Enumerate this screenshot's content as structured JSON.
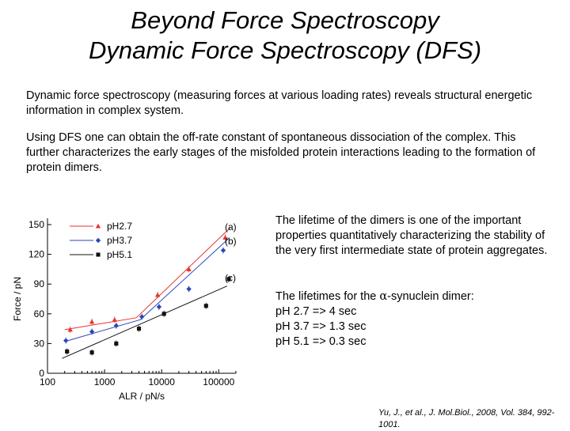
{
  "title_line1": "Beyond Force Spectroscopy",
  "title_line2": "Dynamic Force Spectroscopy (DFS)",
  "paragraph1": "Dynamic force spectroscopy (measuring forces at various loading rates) reveals structural energetic information in complex system.",
  "paragraph2": "Using DFS one can obtain the off-rate constant of spontaneous dissociation of the complex. This further characterizes the early stages of the misfolded protein interactions leading to the formation of protein dimers.",
  "side_text1": "The lifetime of the dimers is one of the important properties quantitatively characterizing the stability of the very first intermediate state of protein aggregates.",
  "lifetimes_intro_pre": "The lifetimes for the ",
  "lifetimes_intro_alpha": "α",
  "lifetimes_intro_post": "-synuclein dimer:",
  "lifetime_rows": [
    "pH 2.7 => 4 sec",
    "pH 3.7 => 1.3 sec",
    "pH 5.1 => 0.3 sec"
  ],
  "citation": "Yu, J., et al., J. Mol.Biol., 2008, Vol. 384, 992-1001.",
  "chart_data": {
    "type": "scatter",
    "xlabel": "ALR / pN/s",
    "ylabel": "Force / pN",
    "xscale": "log",
    "xlim": [
      100,
      200000
    ],
    "ylim": [
      0,
      150
    ],
    "x_ticks": [
      100,
      1000,
      10000,
      100000
    ],
    "x_tick_labels": [
      "100",
      "1000",
      "10000",
      "100000"
    ],
    "y_ticks": [
      0,
      30,
      60,
      90,
      120,
      150
    ],
    "legend_position": "top-left",
    "grid": false,
    "series": [
      {
        "name": "pH2.7",
        "tag": "(a)",
        "color": "#e8322b",
        "marker": "triangle",
        "points": [
          [
            250,
            44
          ],
          [
            600,
            52
          ],
          [
            1500,
            54
          ],
          [
            8500,
            79
          ],
          [
            30000,
            105
          ],
          [
            130000,
            137
          ]
        ],
        "fit_segments": [
          [
            [
              200,
              44
            ],
            [
              3600,
              56
            ]
          ],
          [
            [
              3600,
              56
            ],
            [
              160000,
              147
            ]
          ]
        ]
      },
      {
        "name": "pH3.7",
        "tag": "(b)",
        "color": "#2b46b8",
        "marker": "diamond",
        "points": [
          [
            210,
            33
          ],
          [
            600,
            42
          ],
          [
            1600,
            48
          ],
          [
            4500,
            57
          ],
          [
            9000,
            67
          ],
          [
            30000,
            85
          ],
          [
            120000,
            124
          ]
        ],
        "fit_segments": [
          [
            [
              200,
              32
            ],
            [
              4200,
              54
            ]
          ],
          [
            [
              4200,
              54
            ],
            [
              150000,
              136
            ]
          ]
        ]
      },
      {
        "name": "pH5.1",
        "tag": "(c)",
        "color": "#111111",
        "marker": "square",
        "points": [
          [
            220,
            22
          ],
          [
            600,
            21
          ],
          [
            1600,
            30
          ],
          [
            4000,
            45
          ],
          [
            11000,
            60
          ],
          [
            60000,
            68
          ],
          [
            150000,
            95
          ]
        ],
        "fit_segments": [
          [
            [
              180,
              15
            ],
            [
              140000,
              88
            ]
          ]
        ]
      }
    ]
  }
}
